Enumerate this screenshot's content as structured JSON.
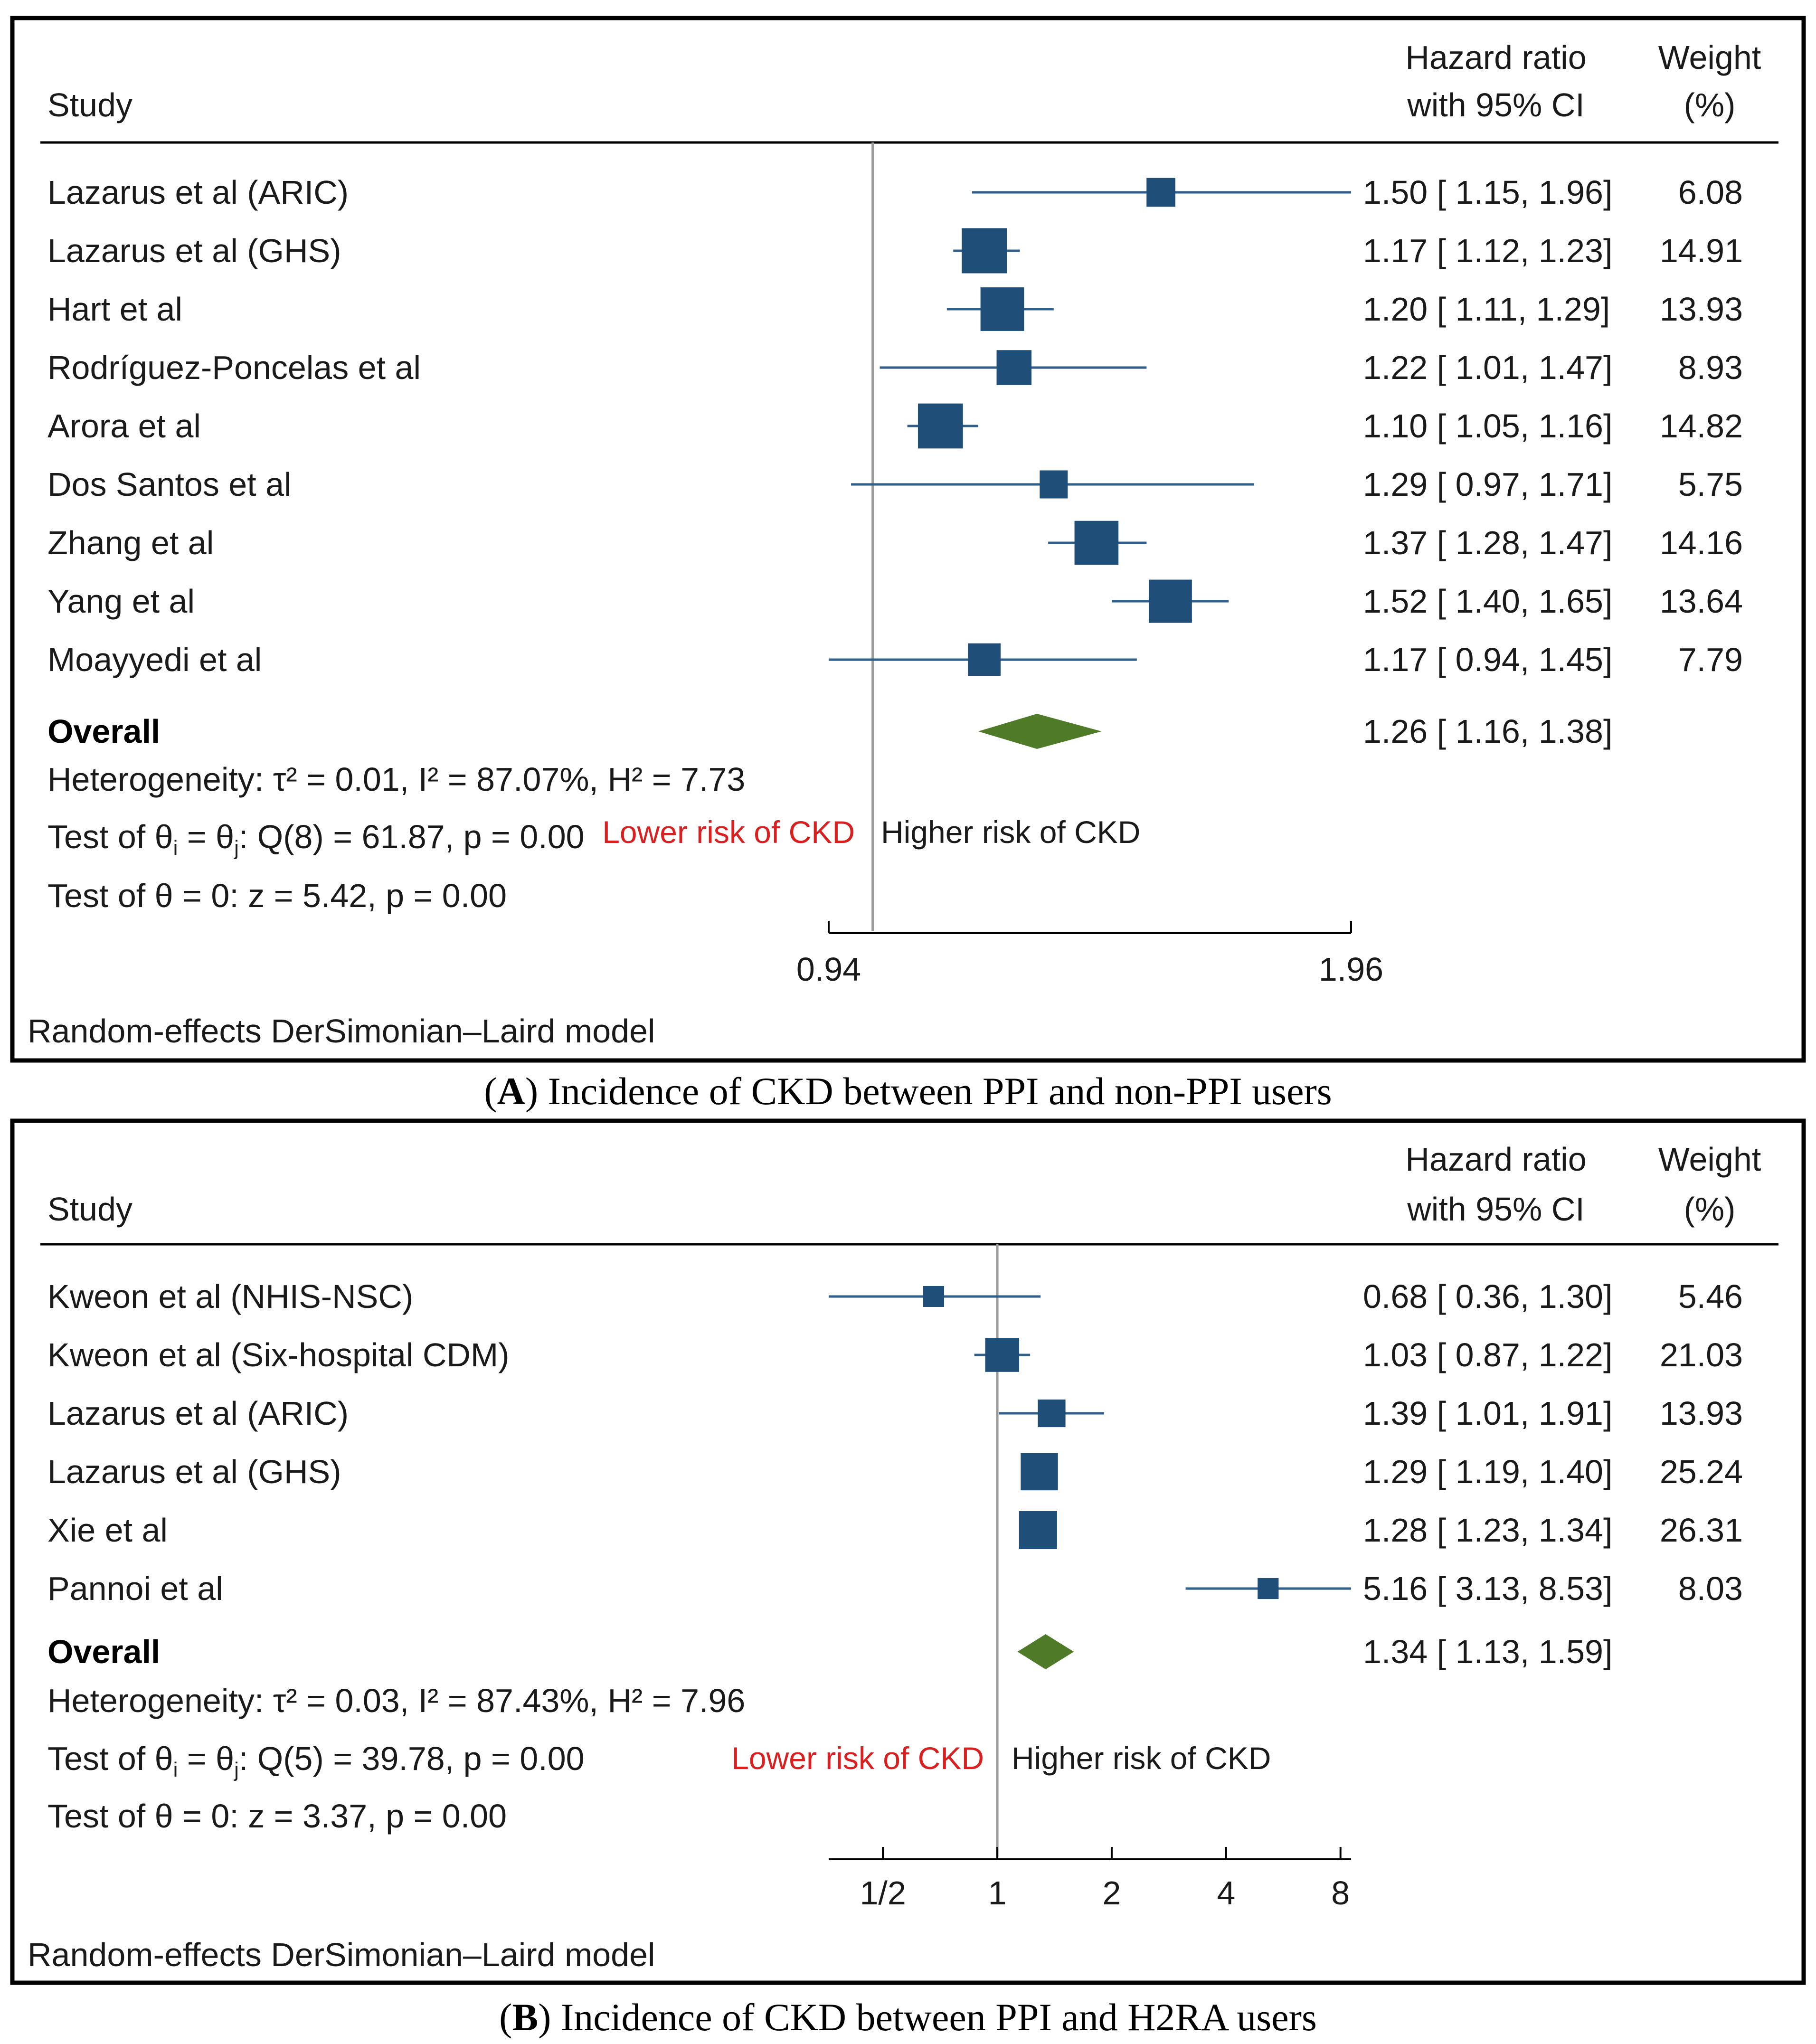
{
  "chart_data": [
    {
      "type": "forest",
      "panel_label": "A",
      "caption": "Incidence of CKD between PPI and non-PPI users",
      "header": {
        "study": "Study",
        "hr_line1": "Hazard ratio",
        "hr_line2": "with 95% CI",
        "weight_line1": "Weight",
        "weight_line2": "(%)"
      },
      "scale": "log",
      "xlim": [
        0.94,
        1.96
      ],
      "ticks": [
        {
          "value": 0.94,
          "label": "0.94"
        },
        {
          "value": 1.96,
          "label": "1.96"
        }
      ],
      "reference_line": 1.0,
      "colors": {
        "box": "#1f4e79",
        "line": "#2f5f8a",
        "diamond": "#4f7a28",
        "lower_label": "#d92020"
      },
      "studies": [
        {
          "name": "Lazarus et al (ARIC)",
          "hr": 1.5,
          "lo": 1.15,
          "hi": 1.96,
          "ci_text": "1.50 [ 1.15,  1.96]",
          "weight": "6.08",
          "arrow": true
        },
        {
          "name": "Lazarus et al (GHS)",
          "hr": 1.17,
          "lo": 1.12,
          "hi": 1.23,
          "ci_text": "1.17 [ 1.12,  1.23]",
          "weight": "14.91"
        },
        {
          "name": "Hart et al",
          "hr": 1.2,
          "lo": 1.11,
          "hi": 1.29,
          "ci_text": "1.20 [ 1.11,  1.29]",
          "weight": "13.93"
        },
        {
          "name": "Rodríguez-Poncelas et al",
          "hr": 1.22,
          "lo": 1.01,
          "hi": 1.47,
          "ci_text": "1.22 [ 1.01,  1.47]",
          "weight": "8.93"
        },
        {
          "name": "Arora et al",
          "hr": 1.1,
          "lo": 1.05,
          "hi": 1.16,
          "ci_text": "1.10 [ 1.05,  1.16]",
          "weight": "14.82"
        },
        {
          "name": "Dos Santos et al",
          "hr": 1.29,
          "lo": 0.97,
          "hi": 1.71,
          "ci_text": "1.29 [ 0.97,  1.71]",
          "weight": "5.75"
        },
        {
          "name": "Zhang et al",
          "hr": 1.37,
          "lo": 1.28,
          "hi": 1.47,
          "ci_text": "1.37 [ 1.28,  1.47]",
          "weight": "14.16"
        },
        {
          "name": "Yang et al",
          "hr": 1.52,
          "lo": 1.4,
          "hi": 1.65,
          "ci_text": "1.52 [ 1.40,  1.65]",
          "weight": "13.64"
        },
        {
          "name": "Moayyedi et al",
          "hr": 1.17,
          "lo": 0.94,
          "hi": 1.45,
          "ci_text": "1.17 [ 0.94,  1.45]",
          "weight": "7.79"
        }
      ],
      "overall": {
        "label": "Overall",
        "hr": 1.26,
        "lo": 1.16,
        "hi": 1.38,
        "ci_text": "1.26 [ 1.16,  1.38]"
      },
      "heterogeneity": "Heterogeneity: τ² = 0.01, I² = 87.07%, H² = 7.73",
      "test_homogeneity": {
        "prefix": "Test of θ",
        "sub1": "i",
        "mid": " = θ",
        "sub2": "j",
        "rest": ": Q(8) = 61.87, p = 0.00"
      },
      "test_theta": "Test of θ = 0: z = 5.42, p = 0.00",
      "lower_label": "Lower risk of CKD",
      "higher_label": "Higher risk of CKD",
      "model_note": "Random-effects DerSimonian–Laird model"
    },
    {
      "type": "forest",
      "panel_label": "B",
      "caption": "Incidence of CKD between PPI and H2RA users",
      "header": {
        "study": "Study",
        "hr_line1": "Hazard ratio",
        "hr_line2": "with 95% CI",
        "weight_line1": "Weight",
        "weight_line2": "(%)"
      },
      "scale": "log",
      "xlim": [
        0.36,
        8.53
      ],
      "ticks": [
        {
          "value": 0.5,
          "label": "1/2"
        },
        {
          "value": 1,
          "label": "1"
        },
        {
          "value": 2,
          "label": "2"
        },
        {
          "value": 4,
          "label": "4"
        },
        {
          "value": 8,
          "label": "8"
        }
      ],
      "reference_line": 1.0,
      "colors": {
        "box": "#1f4e79",
        "line": "#2f5f8a",
        "diamond": "#4f7a28",
        "lower_label": "#d92020"
      },
      "studies": [
        {
          "name": "Kweon et al (NHIS-NSC)",
          "hr": 0.68,
          "lo": 0.36,
          "hi": 1.3,
          "ci_text": "0.68 [ 0.36,  1.30]",
          "weight": "5.46"
        },
        {
          "name": "Kweon et al (Six-hospital CDM)",
          "hr": 1.03,
          "lo": 0.87,
          "hi": 1.22,
          "ci_text": "1.03 [ 0.87,  1.22]",
          "weight": "21.03"
        },
        {
          "name": "Lazarus et al (ARIC)",
          "hr": 1.39,
          "lo": 1.01,
          "hi": 1.91,
          "ci_text": "1.39 [ 1.01,  1.91]",
          "weight": "13.93"
        },
        {
          "name": "Lazarus et al (GHS)",
          "hr": 1.29,
          "lo": 1.19,
          "hi": 1.4,
          "ci_text": "1.29 [ 1.19,  1.40]",
          "weight": "25.24"
        },
        {
          "name": "Xie et al",
          "hr": 1.28,
          "lo": 1.23,
          "hi": 1.34,
          "ci_text": "1.28 [ 1.23,  1.34]",
          "weight": "26.31"
        },
        {
          "name": "Pannoi et al",
          "hr": 5.16,
          "lo": 3.13,
          "hi": 8.53,
          "ci_text": "5.16 [ 3.13,  8.53]",
          "weight": "8.03"
        }
      ],
      "overall": {
        "label": "Overall",
        "hr": 1.34,
        "lo": 1.13,
        "hi": 1.59,
        "ci_text": "1.34 [ 1.13,  1.59]"
      },
      "heterogeneity": "Heterogeneity: τ² = 0.03, I² = 87.43%, H² = 7.96",
      "test_homogeneity": {
        "prefix": "Test of θ",
        "sub1": "i",
        "mid": " = θ",
        "sub2": "j",
        "rest": ": Q(5) = 39.78, p = 0.00"
      },
      "test_theta": "Test of θ = 0: z = 3.37, p = 0.00",
      "lower_label": "Lower risk of CKD",
      "higher_label": "Higher risk of CKD",
      "model_note": "Random-effects DerSimonian–Laird model"
    }
  ]
}
